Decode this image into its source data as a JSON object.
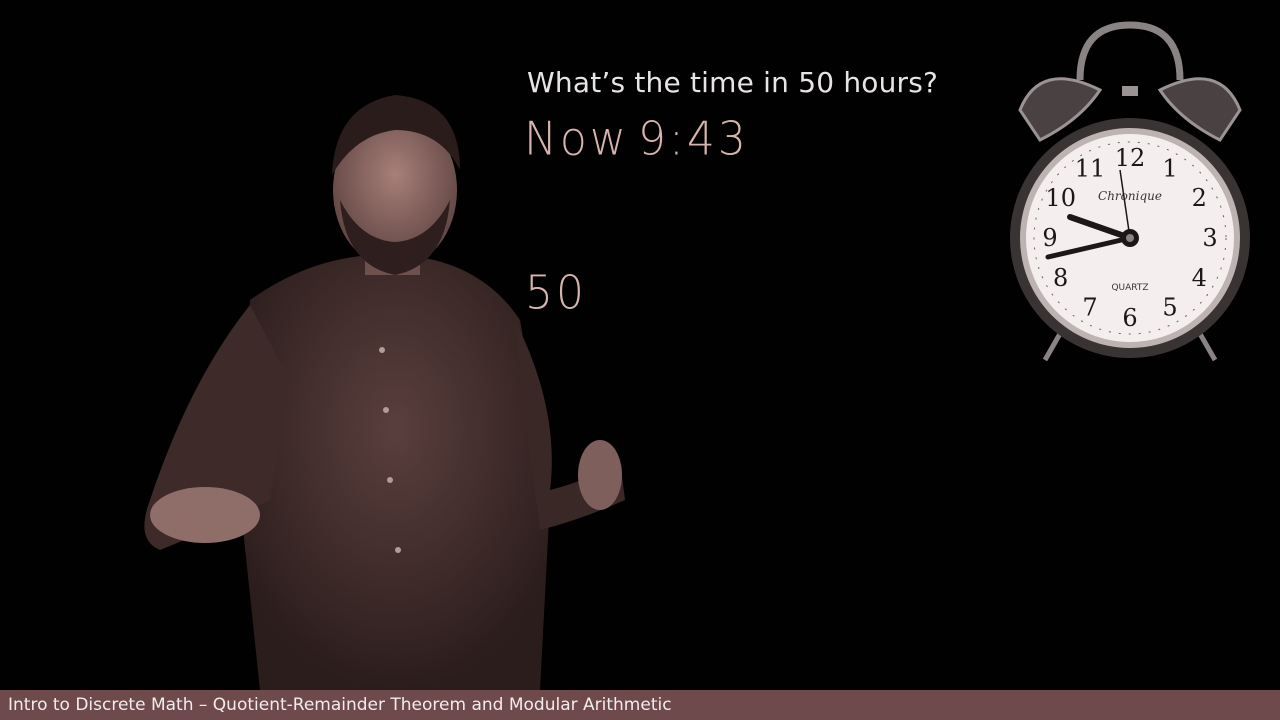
{
  "board": {
    "question": "What’s the time in 50 hours?",
    "now_label": "Now",
    "now_time": "9:43",
    "hours_value": "50"
  },
  "clock": {
    "brand": "Chronique",
    "face_label": "QUARTZ",
    "numerals": [
      "12",
      "1",
      "2",
      "3",
      "4",
      "5",
      "6",
      "7",
      "8",
      "9",
      "10",
      "11"
    ]
  },
  "footer": {
    "title": "Intro to Discrete Math – Quotient-Remainder Theorem and Modular Arithmetic",
    "bar_color": "#6e4a4c"
  },
  "colors": {
    "background": "#000000",
    "chalk_handwriting": "#d7b4ae",
    "typed_text": "#e8e4e4"
  }
}
